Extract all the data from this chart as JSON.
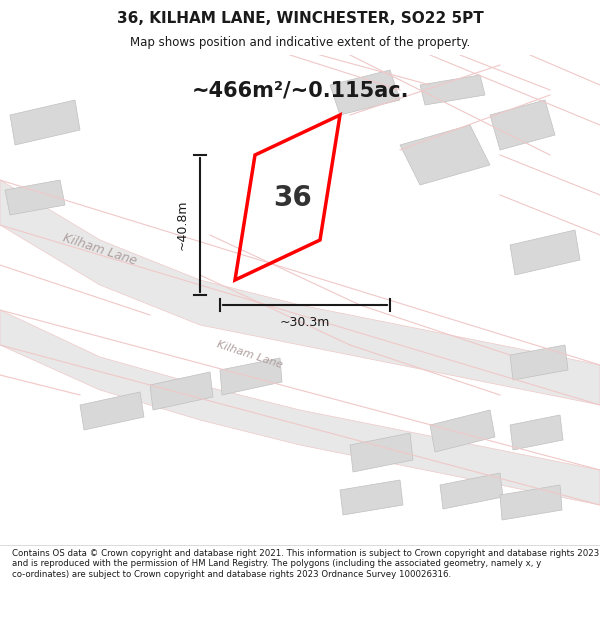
{
  "title": "36, KILHAM LANE, WINCHESTER, SO22 5PT",
  "subtitle": "Map shows position and indicative extent of the property.",
  "area_text": "~466m²/~0.115ac.",
  "number_label": "36",
  "dim_height": "~40.8m",
  "dim_width": "~30.3m",
  "footer": "Contains OS data © Crown copyright and database right 2021. This information is subject to Crown copyright and database rights 2023 and is reproduced with the permission of HM Land Registry. The polygons (including the associated geometry, namely x, y co-ordinates) are subject to Crown copyright and database rights 2023 Ordnance Survey 100026316.",
  "bg_color": "#f5f5f5",
  "map_bg": "#ffffff",
  "road_color": "#f0c8c8",
  "road_fill": "#e8e8e8",
  "building_color": "#d8d8d8",
  "building_edge": "#c0c0c0",
  "plot_color": "#ff0000",
  "dim_color": "#1a1a1a",
  "road_label_color": "#b0a0a0",
  "title_color": "#1a1a1a",
  "footer_color": "#1a1a1a",
  "area_color": "#1a1a1a"
}
